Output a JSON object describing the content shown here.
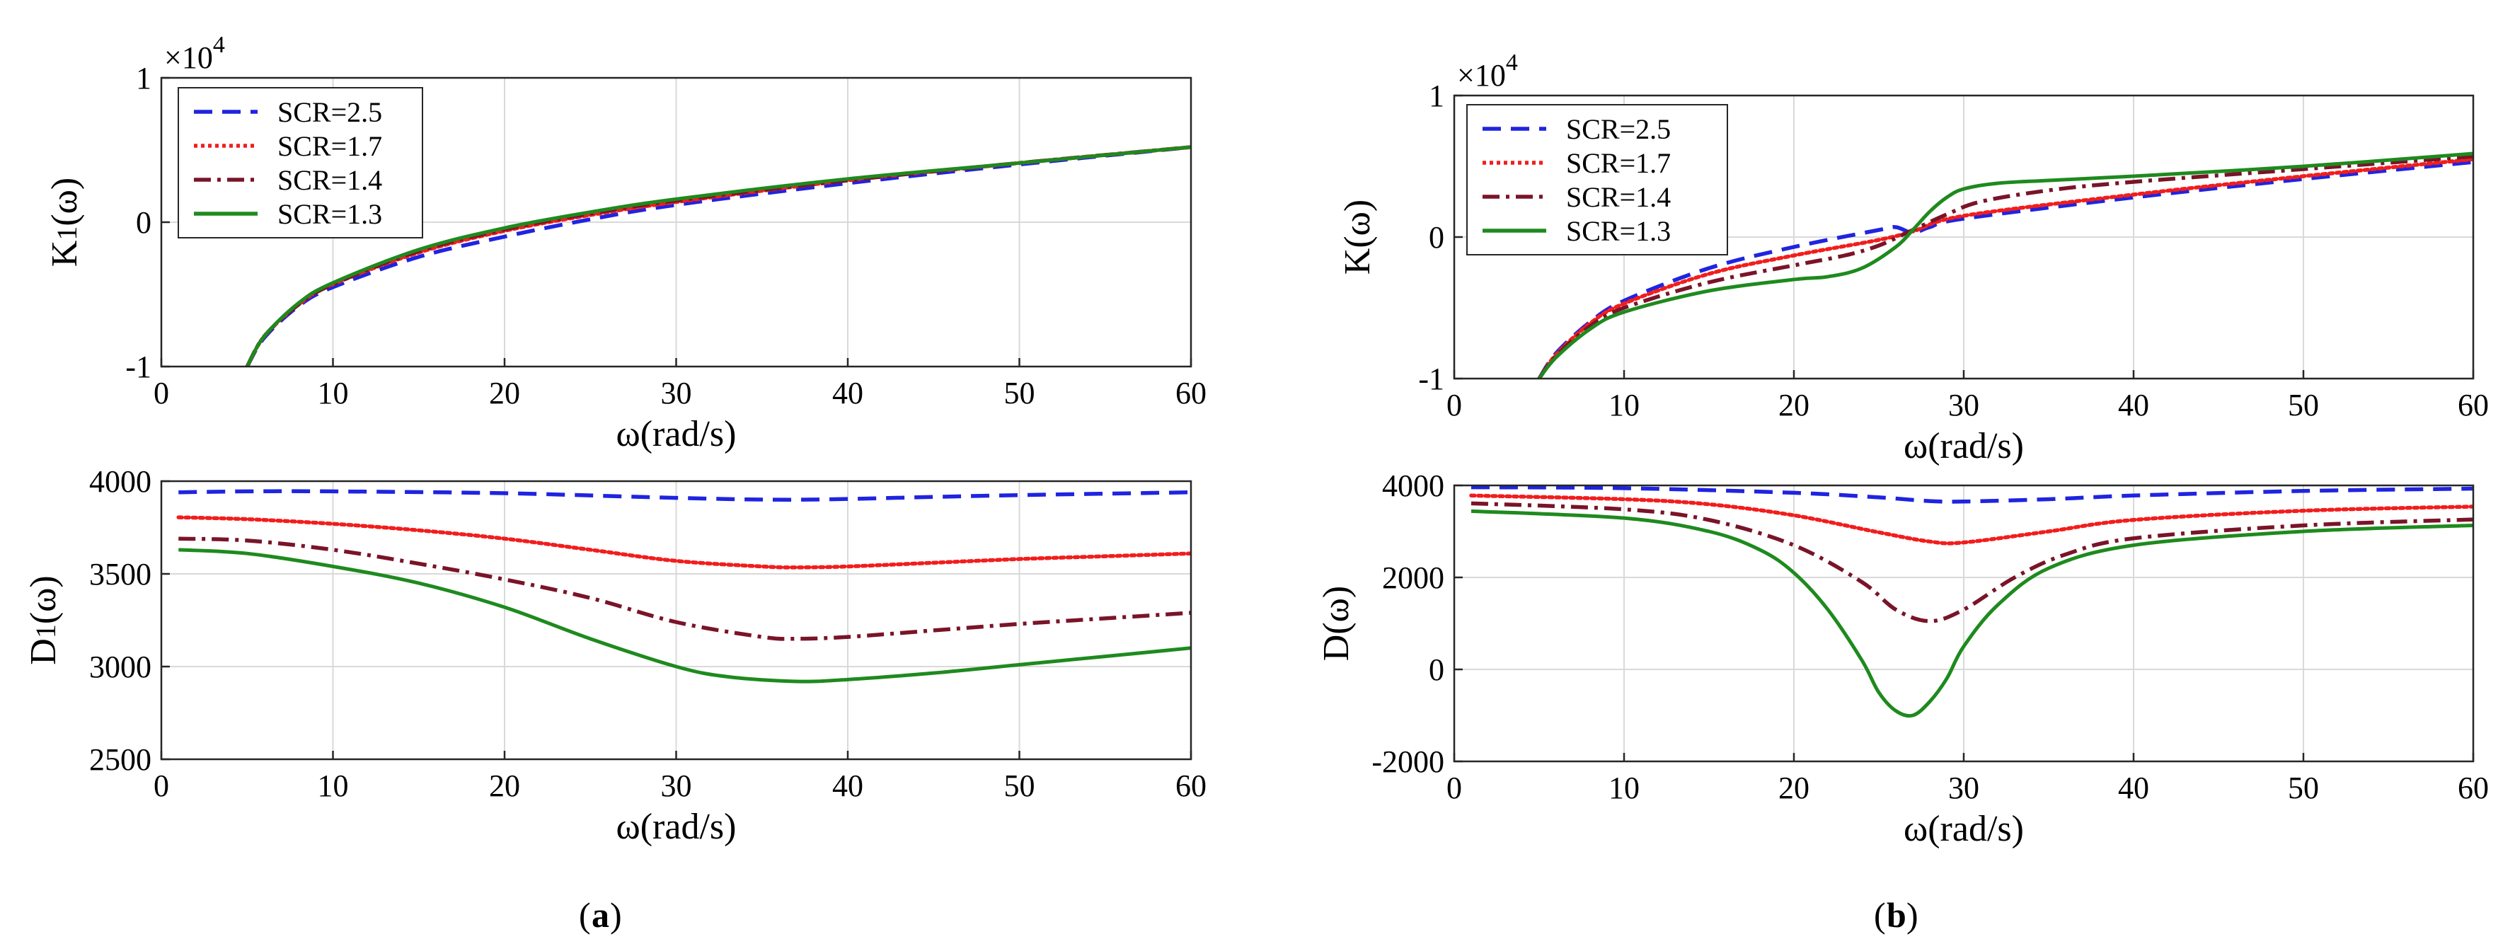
{
  "chart_data": [
    {
      "id": "a-top",
      "type": "line",
      "ylabel": "K",
      "ylabel_sub": "1",
      "ylabel_tail": "(ω)",
      "xlabel": "ω(rad/s)",
      "xlim": [
        0,
        60
      ],
      "ylim": [
        -1,
        1
      ],
      "x_ticks": [
        "0",
        "10",
        "20",
        "30",
        "40",
        "50",
        "60"
      ],
      "y_ticks": [
        "-1",
        "0",
        "1"
      ],
      "exponent_label": "×10",
      "exponent_power": "4",
      "legend": [
        "SCR=2.5",
        "SCR=1.7",
        "SCR=1.4",
        "SCR=1.3"
      ],
      "series": [
        {
          "name": "SCR=2.5",
          "x": [
            5,
            6,
            8,
            10,
            15,
            20,
            25,
            30,
            40,
            50,
            60
          ],
          "y": [
            -1.0,
            -0.8,
            -0.58,
            -0.45,
            -0.24,
            -0.1,
            0.02,
            0.12,
            0.27,
            0.4,
            0.52
          ]
        },
        {
          "name": "SCR=1.7",
          "x": [
            5,
            6,
            8,
            10,
            15,
            20,
            25,
            30,
            40,
            50,
            60
          ],
          "y": [
            -1.0,
            -0.79,
            -0.57,
            -0.43,
            -0.21,
            -0.06,
            0.05,
            0.14,
            0.29,
            0.41,
            0.52
          ]
        },
        {
          "name": "SCR=1.4",
          "x": [
            5,
            6,
            8,
            10,
            15,
            20,
            25,
            30,
            40,
            50,
            60
          ],
          "y": [
            -1.0,
            -0.79,
            -0.57,
            -0.43,
            -0.2,
            -0.05,
            0.06,
            0.15,
            0.29,
            0.41,
            0.52
          ]
        },
        {
          "name": "SCR=1.3",
          "x": [
            5,
            6,
            8,
            10,
            15,
            20,
            25,
            30,
            40,
            50,
            60
          ],
          "y": [
            -1.0,
            -0.79,
            -0.56,
            -0.42,
            -0.19,
            -0.04,
            0.07,
            0.16,
            0.3,
            0.41,
            0.52
          ]
        }
      ]
    },
    {
      "id": "a-bottom",
      "type": "line",
      "ylabel": "D",
      "ylabel_sub": "1",
      "ylabel_tail": "(ω)",
      "xlabel": "ω(rad/s)",
      "xlim": [
        0,
        60
      ],
      "ylim": [
        2500,
        4000
      ],
      "x_ticks": [
        "0",
        "10",
        "20",
        "30",
        "40",
        "50",
        "60"
      ],
      "y_ticks": [
        "2500",
        "3000",
        "3500",
        "4000"
      ],
      "series": [
        {
          "name": "SCR=2.5",
          "x": [
            1,
            5,
            10,
            20,
            30,
            37,
            45,
            50,
            60
          ],
          "y": [
            3940,
            3945,
            3945,
            3935,
            3910,
            3900,
            3915,
            3925,
            3940
          ]
        },
        {
          "name": "SCR=1.7",
          "x": [
            1,
            5,
            10,
            15,
            20,
            25,
            30,
            35,
            37,
            40,
            45,
            50,
            55,
            60
          ],
          "y": [
            3805,
            3795,
            3770,
            3735,
            3690,
            3630,
            3570,
            3540,
            3535,
            3540,
            3560,
            3580,
            3595,
            3610
          ]
        },
        {
          "name": "SCR=1.4",
          "x": [
            1,
            5,
            10,
            15,
            20,
            25,
            30,
            35,
            37,
            40,
            45,
            50,
            55,
            60
          ],
          "y": [
            3690,
            3680,
            3630,
            3555,
            3470,
            3370,
            3240,
            3160,
            3150,
            3160,
            3195,
            3230,
            3260,
            3290
          ]
        },
        {
          "name": "SCR=1.3",
          "x": [
            1,
            5,
            10,
            15,
            20,
            25,
            30,
            33,
            37,
            40,
            45,
            50,
            55,
            60
          ],
          "y": [
            3630,
            3610,
            3540,
            3450,
            3320,
            3150,
            3000,
            2945,
            2920,
            2930,
            2965,
            3010,
            3055,
            3100
          ]
        }
      ]
    },
    {
      "id": "b-top",
      "type": "line",
      "ylabel": "K",
      "ylabel_sub": "",
      "ylabel_tail": "(ω)",
      "xlabel": "ω(rad/s)",
      "xlim": [
        0,
        60
      ],
      "ylim": [
        -1,
        1
      ],
      "x_ticks": [
        "0",
        "10",
        "20",
        "30",
        "40",
        "50",
        "60"
      ],
      "y_ticks": [
        "-1",
        "0",
        "1"
      ],
      "exponent_label": "×10",
      "exponent_power": "4",
      "legend": [
        "SCR=2.5",
        "SCR=1.7",
        "SCR=1.4",
        "SCR=1.3"
      ],
      "series": [
        {
          "name": "SCR=2.5",
          "x": [
            5,
            6,
            8,
            10,
            15,
            20,
            25,
            26,
            27,
            28,
            30,
            40,
            50,
            60
          ],
          "y": [
            -1.0,
            -0.82,
            -0.6,
            -0.45,
            -0.22,
            -0.07,
            0.05,
            0.07,
            0.03,
            0.07,
            0.13,
            0.28,
            0.41,
            0.53
          ]
        },
        {
          "name": "SCR=1.7",
          "x": [
            5,
            6,
            8,
            10,
            15,
            20,
            25,
            27,
            30,
            40,
            50,
            60
          ],
          "y": [
            -1.0,
            -0.83,
            -0.61,
            -0.47,
            -0.26,
            -0.13,
            -0.02,
            0.04,
            0.15,
            0.3,
            0.43,
            0.55
          ]
        },
        {
          "name": "SCR=1.4",
          "x": [
            5,
            6,
            8,
            10,
            15,
            20,
            23,
            25,
            27,
            29,
            31,
            35,
            40,
            50,
            60
          ],
          "y": [
            -1.0,
            -0.84,
            -0.63,
            -0.5,
            -0.32,
            -0.2,
            -0.13,
            -0.06,
            0.05,
            0.16,
            0.25,
            0.33,
            0.39,
            0.48,
            0.57
          ]
        },
        {
          "name": "SCR=1.3",
          "x": [
            5,
            6,
            8,
            10,
            15,
            20,
            22,
            24,
            26,
            27,
            28,
            29,
            30,
            32,
            35,
            40,
            50,
            60
          ],
          "y": [
            -1.0,
            -0.85,
            -0.65,
            -0.53,
            -0.38,
            -0.3,
            -0.28,
            -0.22,
            -0.07,
            0.05,
            0.18,
            0.28,
            0.34,
            0.38,
            0.4,
            0.43,
            0.5,
            0.59
          ]
        }
      ]
    },
    {
      "id": "b-bottom",
      "type": "line",
      "ylabel": "D",
      "ylabel_sub": "",
      "ylabel_tail": "(ω)",
      "xlabel": "ω(rad/s)",
      "xlim": [
        0,
        60
      ],
      "ylim": [
        -2000,
        4000
      ],
      "x_ticks": [
        "0",
        "10",
        "20",
        "30",
        "40",
        "50",
        "60"
      ],
      "y_ticks": [
        "-2000",
        "0",
        "2000",
        "4000"
      ],
      "series": [
        {
          "name": "SCR=2.5",
          "x": [
            1,
            10,
            20,
            25,
            28,
            30,
            35,
            40,
            50,
            60
          ],
          "y": [
            3960,
            3940,
            3840,
            3740,
            3660,
            3650,
            3700,
            3780,
            3880,
            3930
          ]
        },
        {
          "name": "SCR=1.7",
          "x": [
            1,
            10,
            15,
            20,
            25,
            28,
            30,
            35,
            40,
            50,
            60
          ],
          "y": [
            3780,
            3700,
            3590,
            3350,
            2980,
            2780,
            2760,
            3000,
            3250,
            3450,
            3540
          ]
        },
        {
          "name": "SCR=1.4",
          "x": [
            1,
            10,
            15,
            20,
            24,
            26,
            28,
            30,
            33,
            36,
            40,
            50,
            60
          ],
          "y": [
            3610,
            3480,
            3250,
            2700,
            1900,
            1300,
            1050,
            1300,
            2000,
            2500,
            2850,
            3130,
            3260
          ]
        },
        {
          "name": "SCR=1.3",
          "x": [
            1,
            10,
            15,
            18,
            20,
            22,
            24,
            25,
            26,
            27,
            28,
            29,
            30,
            32,
            35,
            40,
            50,
            60
          ],
          "y": [
            3440,
            3290,
            3000,
            2600,
            2100,
            1300,
            200,
            -500,
            -900,
            -1000,
            -700,
            -200,
            500,
            1400,
            2200,
            2700,
            3000,
            3130
          ]
        }
      ]
    }
  ],
  "series_colors": [
    "#1f24e0",
    "#f21d1d",
    "#7a1428",
    "#1e8a1e"
  ],
  "series_styles": [
    "dashed",
    "dotted",
    "dashdot",
    "solid"
  ],
  "panel_labels": [
    "a",
    "b"
  ]
}
